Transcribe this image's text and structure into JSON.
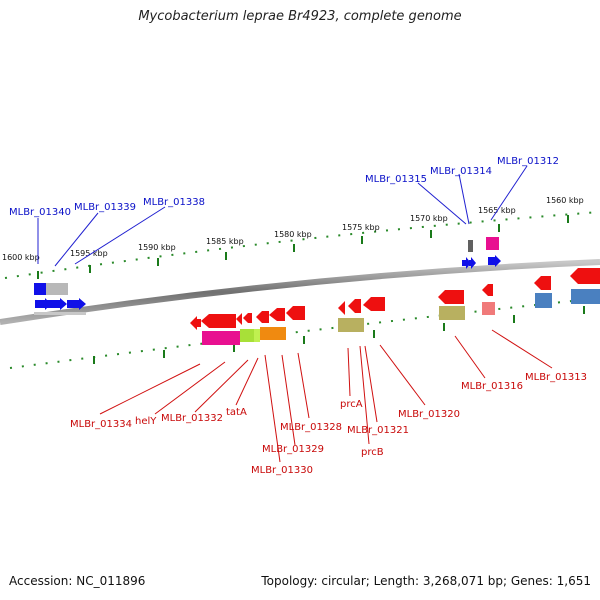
{
  "title": "Mycobacterium leprae Br4923, complete genome",
  "footer": {
    "accession": "Accession: NC_011896",
    "topology": "Topology: circular; Length: 3,268,071 bp; Genes: 1,651"
  },
  "scale_ticks": [
    "1600 kbp",
    "1595 kbp",
    "1590 kbp",
    "1585 kbp",
    "1580 kbp",
    "1575 kbp",
    "1570 kbp",
    "1565 kbp",
    "1560 kbp"
  ],
  "upper_labels": [
    "MLBr_01340",
    "MLBr_01339",
    "MLBr_01338",
    "MLBr_01315",
    "MLBr_01314",
    "MLBr_01312"
  ],
  "lower_labels": [
    "MLBr_01334",
    "helY",
    "MLBr_01332",
    "tatA",
    "MLBr_01330",
    "MLBr_01329",
    "MLBr_01328",
    "prcA",
    "prcB",
    "MLBr_01321",
    "MLBr_01320",
    "MLBr_01316",
    "MLBr_01313"
  ],
  "colors": {
    "upper_label": "#0a10c8",
    "lower_label": "#c80808",
    "forward_gene": "#1010e8",
    "reverse_gene": "#ee1010",
    "tick": "#1a7a1a",
    "backbone": "#8a8a8a"
  }
}
